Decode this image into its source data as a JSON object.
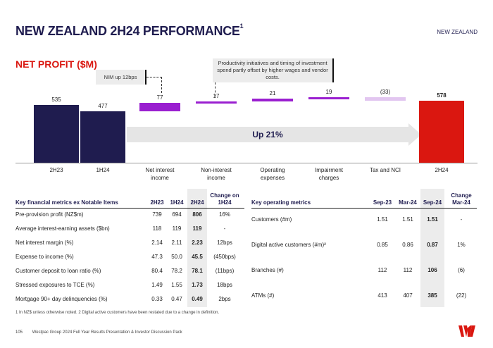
{
  "header": {
    "title": "NEW ZEALAND 2H24 PERFORMANCE",
    "title_sup": "1",
    "region": "NEW ZEALAND"
  },
  "net_profit": {
    "title": "NET PROFIT ($M)",
    "callout_nim": "NIM up 12bps",
    "callout_productivity": "Productivity initiatives and timing of investment spend partly offset by higher wages and vendor costs.",
    "arrow_label": "Up 21%"
  },
  "chart_data": {
    "type": "bar",
    "categories": [
      "2H23",
      "1H24",
      "Net interest income",
      "Non-interest income",
      "Operating expenses",
      "Impairment charges",
      "Tax and NCI",
      "2H24"
    ],
    "values": [
      535,
      477,
      77,
      17,
      21,
      19,
      -33,
      578
    ],
    "value_labels": [
      "535",
      "477",
      "77",
      "17",
      "21",
      "19",
      "(33)",
      "578"
    ],
    "colors": {
      "total_dark": "#1f1c4f",
      "increase": "#9a1fd0",
      "decrease": "#e2c6f0",
      "total_red": "#da1710"
    }
  },
  "key_financial": {
    "headers": [
      "Key financial metrics ex Notable Items",
      "2H23",
      "1H24",
      "2H24",
      "Change on 1H24"
    ],
    "rows": [
      [
        "Pre-provision profit (NZ$m)",
        "739",
        "694",
        "806",
        "16%"
      ],
      [
        "Average interest-earning assets ($bn)",
        "118",
        "119",
        "119",
        "-"
      ],
      [
        "Net interest margin (%)",
        "2.14",
        "2.11",
        "2.23",
        "12bps"
      ],
      [
        "Expense to income (%)",
        "47.3",
        "50.0",
        "45.5",
        "(450bps)"
      ],
      [
        "Customer deposit to loan ratio (%)",
        "80.4",
        "78.2",
        "78.1",
        "(11bps)"
      ],
      [
        "Stressed exposures to TCE (%)",
        "1.49",
        "1.55",
        "1.73",
        "18bps"
      ],
      [
        "Mortgage 90+ day delinquencies (%)",
        "0.33",
        "0.47",
        "0.49",
        "2bps"
      ]
    ]
  },
  "key_operating": {
    "headers": [
      "Key operating metrics",
      "Sep-23",
      "Mar-24",
      "Sep-24",
      "Change Mar-24"
    ],
    "rows": [
      [
        "Customers (#m)",
        "1.51",
        "1.51",
        "1.51",
        "-"
      ],
      [
        "Digital active customers (#m)²",
        "0.85",
        "0.86",
        "0.87",
        "1%"
      ],
      [
        "Branches (#)",
        "112",
        "112",
        "106",
        "(6)"
      ],
      [
        "ATMs (#)",
        "413",
        "407",
        "385",
        "(22)"
      ]
    ]
  },
  "footnote": "1 In NZ$ unless otherwise noted. 2 Digital active customers have been restated due to a change in definition.",
  "footer": {
    "page": "105",
    "text": "Westpac Group 2024 Full Year Results Presentation & Investor Discussion Pack"
  },
  "logo_icon": "westpac-w-logo"
}
